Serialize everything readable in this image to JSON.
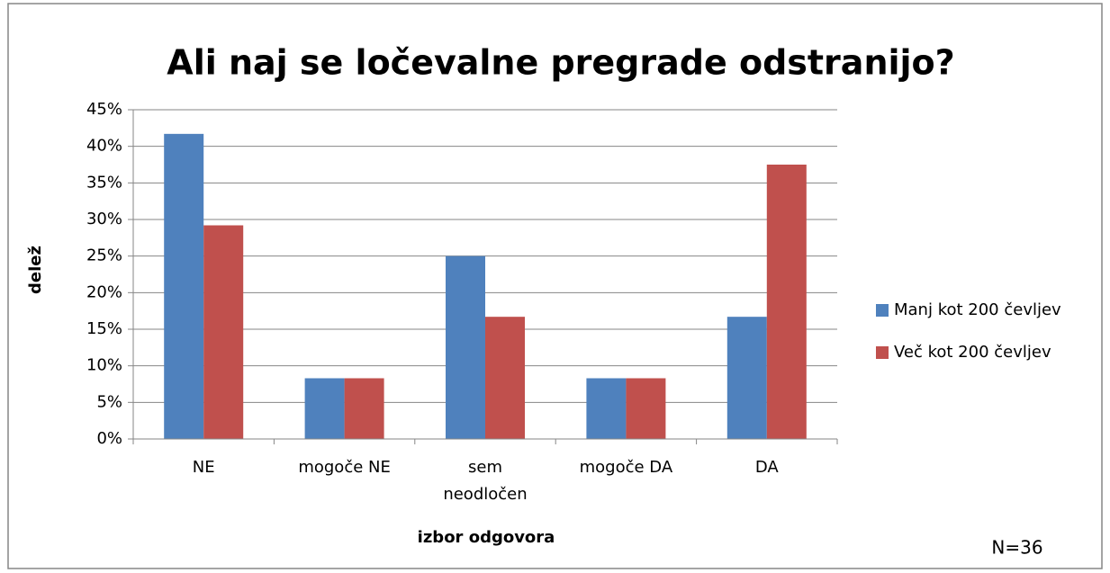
{
  "chart_data": {
    "type": "bar",
    "title": "Ali naj se ločevalne pregrade odstranijo?",
    "x_label": "izbor odgovora",
    "y_label": "delež",
    "annotation": "N=36",
    "categories": [
      "NE",
      "mogoče NE",
      "sem neodločen",
      "mogoče DA",
      "DA"
    ],
    "series": [
      {
        "name": "Manj kot 200 čevljev",
        "color": "#4f81bd",
        "values": [
          41.7,
          8.3,
          25,
          8.3,
          16.7
        ]
      },
      {
        "name": "Več kot 200 čevljev",
        "color": "#c0504d",
        "values": [
          29.2,
          8.3,
          16.7,
          8.3,
          37.5
        ]
      }
    ],
    "ylim": [
      0,
      45
    ],
    "yticks": [
      {
        "value": 0,
        "label": "0%"
      },
      {
        "value": 5,
        "label": "5%"
      },
      {
        "value": 10,
        "label": "10%"
      },
      {
        "value": 15,
        "label": "15%"
      },
      {
        "value": 20,
        "label": "20%"
      },
      {
        "value": 25,
        "label": "25%"
      },
      {
        "value": 30,
        "label": "30%"
      },
      {
        "value": 35,
        "label": "35%"
      },
      {
        "value": 40,
        "label": "40%"
      },
      {
        "value": 45,
        "label": "45%"
      }
    ],
    "grid": true,
    "legend": "right"
  }
}
